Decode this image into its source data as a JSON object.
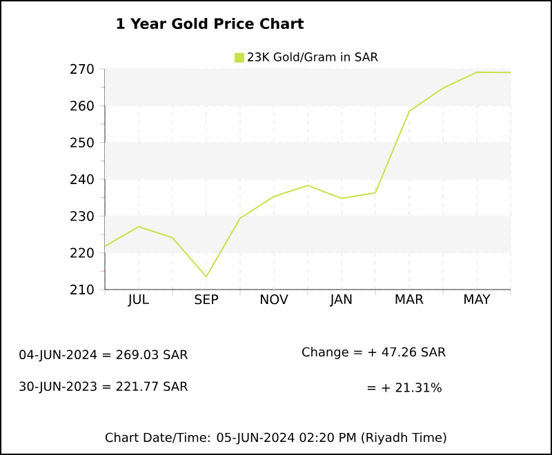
{
  "chart_data": {
    "type": "line",
    "title": "1 Year Gold Price Chart",
    "categories": [
      null,
      "JUL",
      null,
      "SEP",
      null,
      "NOV",
      null,
      "JAN",
      null,
      "MAR",
      null,
      "MAY",
      null
    ],
    "series": [
      {
        "name": "23K Gold/Gram in SAR",
        "color": "#c6e24d",
        "values": [
          221.8,
          227.1,
          224.1,
          213.5,
          229.4,
          235.3,
          238.3,
          234.8,
          236.3,
          258.5,
          264.8,
          269.1,
          269.0
        ]
      }
    ],
    "ylim": [
      210,
      270
    ],
    "yticks": [
      210,
      220,
      230,
      240,
      250,
      260,
      270
    ],
    "bands": [
      {
        "axis": "y",
        "from": 220,
        "to": 230,
        "color": "#f5f5f5"
      },
      {
        "axis": "y",
        "from": 240,
        "to": 250,
        "color": "#f5f5f5"
      },
      {
        "axis": "y",
        "from": 260,
        "to": 270,
        "color": "#f5f5f5"
      }
    ],
    "grid": true,
    "legend": "top",
    "marker": "none",
    "line_style": "solid",
    "annotations": [
      "04-JUN-2024 = 269.03 SAR",
      "30-JUN-2023 = 221.77 SAR",
      "Change = + 47.26 SAR",
      "= + 21.31%",
      "Chart Date/Time: 05-JUN-2024 02:20 PM (Riyadh Time)"
    ]
  }
}
